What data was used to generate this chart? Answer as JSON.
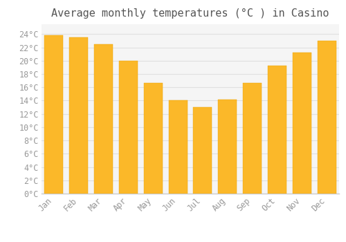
{
  "title": "Average monthly temperatures (°C ) in Casino",
  "months": [
    "Jan",
    "Feb",
    "Mar",
    "Apr",
    "May",
    "Jun",
    "Jul",
    "Aug",
    "Sep",
    "Oct",
    "Nov",
    "Dec"
  ],
  "values": [
    23.8,
    23.5,
    22.5,
    20.0,
    16.7,
    14.1,
    13.0,
    14.2,
    16.7,
    19.3,
    21.2,
    23.0
  ],
  "bar_color_top": "#FBB829",
  "bar_color_bottom": "#F5A800",
  "bar_edge_color": "#E8A000",
  "background_color": "#FFFFFF",
  "plot_bg_color": "#F5F5F5",
  "grid_color": "#E0E0E0",
  "text_color": "#999999",
  "title_color": "#555555",
  "ylim": [
    0,
    25.5
  ],
  "yticks": [
    0,
    2,
    4,
    6,
    8,
    10,
    12,
    14,
    16,
    18,
    20,
    22,
    24
  ],
  "title_fontsize": 11,
  "tick_fontsize": 8.5,
  "font_family": "monospace",
  "bar_width": 0.75
}
